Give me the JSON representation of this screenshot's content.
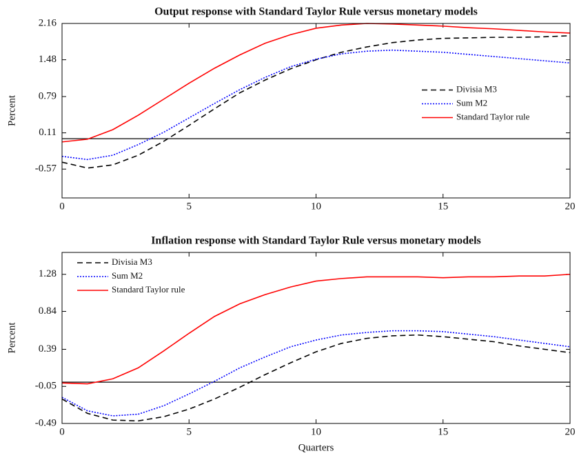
{
  "chart_data": [
    {
      "type": "line",
      "title": "Output response with Standard Taylor Rule versus monetary models",
      "y_label": "Percent",
      "x": [
        0,
        1,
        2,
        3,
        4,
        5,
        6,
        7,
        8,
        9,
        10,
        11,
        12,
        13,
        14,
        15,
        16,
        17,
        18,
        19,
        20
      ],
      "xlim": [
        0,
        20
      ],
      "xticks": [
        0,
        5,
        10,
        15,
        20
      ],
      "ylim": [
        -1.11,
        2.16
      ],
      "yticks": [
        -0.57,
        0.11,
        0.79,
        1.48,
        2.16
      ],
      "hline": 0,
      "legend": "center right",
      "series": [
        {
          "name": "Divisia M3",
          "color": "#000000",
          "style": "dashed",
          "values": [
            -0.44,
            -0.55,
            -0.49,
            -0.31,
            -0.05,
            0.25,
            0.56,
            0.86,
            1.1,
            1.31,
            1.48,
            1.62,
            1.72,
            1.8,
            1.85,
            1.88,
            1.89,
            1.9,
            1.9,
            1.91,
            1.93
          ]
        },
        {
          "name": "Sum M2",
          "color": "#0000ff",
          "style": "dotted",
          "values": [
            -0.33,
            -0.39,
            -0.31,
            -0.11,
            0.12,
            0.39,
            0.66,
            0.92,
            1.15,
            1.35,
            1.49,
            1.59,
            1.64,
            1.66,
            1.64,
            1.62,
            1.58,
            1.54,
            1.5,
            1.46,
            1.42
          ]
        },
        {
          "name": "Standard Taylor rule",
          "color": "#ff0000",
          "style": "solid",
          "values": [
            -0.06,
            -0.01,
            0.17,
            0.44,
            0.74,
            1.04,
            1.32,
            1.57,
            1.79,
            1.95,
            2.07,
            2.13,
            2.16,
            2.15,
            2.13,
            2.11,
            2.08,
            2.06,
            2.03,
            2.0,
            1.98
          ]
        }
      ]
    },
    {
      "type": "line",
      "title": "Inflation response with Standard Taylor Rule versus monetary models",
      "x_label": "Quarters",
      "y_label": "Percent",
      "x": [
        0,
        1,
        2,
        3,
        4,
        5,
        6,
        7,
        8,
        9,
        10,
        11,
        12,
        13,
        14,
        15,
        16,
        17,
        18,
        19,
        20
      ],
      "xlim": [
        0,
        20
      ],
      "xticks": [
        0,
        5,
        10,
        15,
        20
      ],
      "ylim": [
        -0.49,
        1.54
      ],
      "yticks": [
        -0.49,
        -0.05,
        0.39,
        0.84,
        1.28
      ],
      "hline": 0,
      "legend": "upper left",
      "series": [
        {
          "name": "Divisia M3",
          "color": "#000000",
          "style": "dashed",
          "values": [
            -0.2,
            -0.37,
            -0.45,
            -0.46,
            -0.41,
            -0.32,
            -0.2,
            -0.06,
            0.09,
            0.23,
            0.36,
            0.46,
            0.52,
            0.55,
            0.56,
            0.54,
            0.51,
            0.48,
            0.43,
            0.39,
            0.35
          ]
        },
        {
          "name": "Sum M2",
          "color": "#0000ff",
          "style": "dotted",
          "values": [
            -0.18,
            -0.34,
            -0.4,
            -0.38,
            -0.28,
            -0.14,
            0.01,
            0.17,
            0.3,
            0.42,
            0.5,
            0.56,
            0.59,
            0.61,
            0.61,
            0.6,
            0.57,
            0.54,
            0.5,
            0.46,
            0.42
          ]
        },
        {
          "name": "Standard Taylor rule",
          "color": "#ff0000",
          "style": "solid",
          "values": [
            -0.01,
            -0.02,
            0.04,
            0.17,
            0.37,
            0.58,
            0.78,
            0.93,
            1.04,
            1.13,
            1.2,
            1.23,
            1.25,
            1.25,
            1.25,
            1.24,
            1.25,
            1.25,
            1.26,
            1.26,
            1.28
          ]
        }
      ]
    }
  ]
}
